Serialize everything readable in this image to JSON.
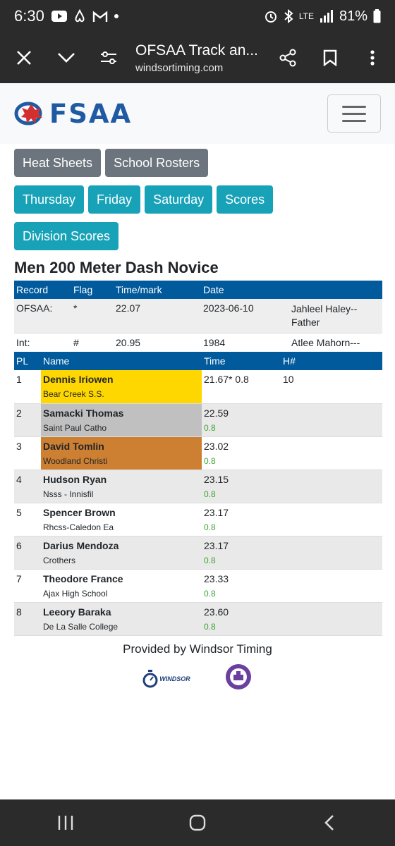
{
  "status_bar": {
    "time": "6:30",
    "network": "LTE",
    "battery": "81%"
  },
  "browser": {
    "title": "OFSAA Track an...",
    "url": "windsortiming.com"
  },
  "site": {
    "logo_text": "FSAA",
    "nav_row1": [
      "Heat Sheets",
      "School Rosters"
    ],
    "nav_row2": [
      "Thursday",
      "Friday",
      "Saturday",
      "Scores"
    ],
    "nav_row3": [
      "Division Scores"
    ]
  },
  "event": {
    "title": "Men 200 Meter Dash Novice"
  },
  "records": {
    "headers": [
      "Record",
      "Flag",
      "Time/mark",
      "Date",
      ""
    ],
    "rows": [
      {
        "record": "OFSAA:",
        "flag": "*",
        "mark": "22.07",
        "date": "2023-06-10",
        "holder": "Jahleel Haley--Father"
      },
      {
        "record": "Int:",
        "flag": "#",
        "mark": "20.95",
        "date": "1984",
        "holder": "Atlee Mahorn---"
      }
    ]
  },
  "results": {
    "headers": [
      "PL",
      "Name",
      "Time",
      "H#"
    ],
    "rows": [
      {
        "pl": "1",
        "name": "Dennis Iriowen",
        "school": "Bear Creek S.S.",
        "time": "21.67* 0.8",
        "wind": "",
        "heat": "10",
        "medal": "gold"
      },
      {
        "pl": "2",
        "name": "Samacki Thomas",
        "school": "Saint Paul Catho",
        "time": "22.59",
        "wind": "0.8",
        "heat": "",
        "medal": "silver"
      },
      {
        "pl": "3",
        "name": "David Tomlin",
        "school": "Woodland Christi",
        "time": "23.02",
        "wind": "0.8",
        "heat": "",
        "medal": "bronze"
      },
      {
        "pl": "4",
        "name": "Hudson Ryan",
        "school": "Nsss - Innisfil",
        "time": "23.15",
        "wind": "0.8",
        "heat": "",
        "medal": ""
      },
      {
        "pl": "5",
        "name": "Spencer Brown",
        "school": "Rhcss-Caledon Ea",
        "time": "23.17",
        "wind": "0.8",
        "heat": "",
        "medal": ""
      },
      {
        "pl": "6",
        "name": "Darius Mendoza",
        "school": "Crothers",
        "time": "23.17",
        "wind": "0.8",
        "heat": "",
        "medal": ""
      },
      {
        "pl": "7",
        "name": "Theodore France",
        "school": "Ajax High School",
        "time": "23.33",
        "wind": "0.8",
        "heat": "",
        "medal": ""
      },
      {
        "pl": "8",
        "name": "Leeory Baraka",
        "school": "De La Salle College",
        "time": "23.60",
        "wind": "0.8",
        "heat": "",
        "medal": ""
      }
    ]
  },
  "footer": {
    "text": "Provided by Windsor Timing",
    "logo_text": "WINDSOR"
  },
  "colors": {
    "header_blue": "#005a9c",
    "teal": "#17a2b8",
    "gray": "#6c757d",
    "gold": "#ffd700",
    "silver": "#c0c0c0",
    "bronze": "#cd7f32",
    "wind_green": "#3fa535"
  },
  "icons": {
    "status": [
      "youtube-icon",
      "airbnb-icon",
      "gmail-icon",
      "alarm-icon",
      "bluetooth-icon",
      "signal-icon",
      "battery-icon"
    ],
    "toolbar": [
      "close-icon",
      "chevron-down-icon",
      "page-settings-icon",
      "share-icon",
      "bookmark-icon",
      "more-vert-icon"
    ],
    "nav": [
      "recents-icon",
      "home-icon",
      "back-icon"
    ]
  }
}
